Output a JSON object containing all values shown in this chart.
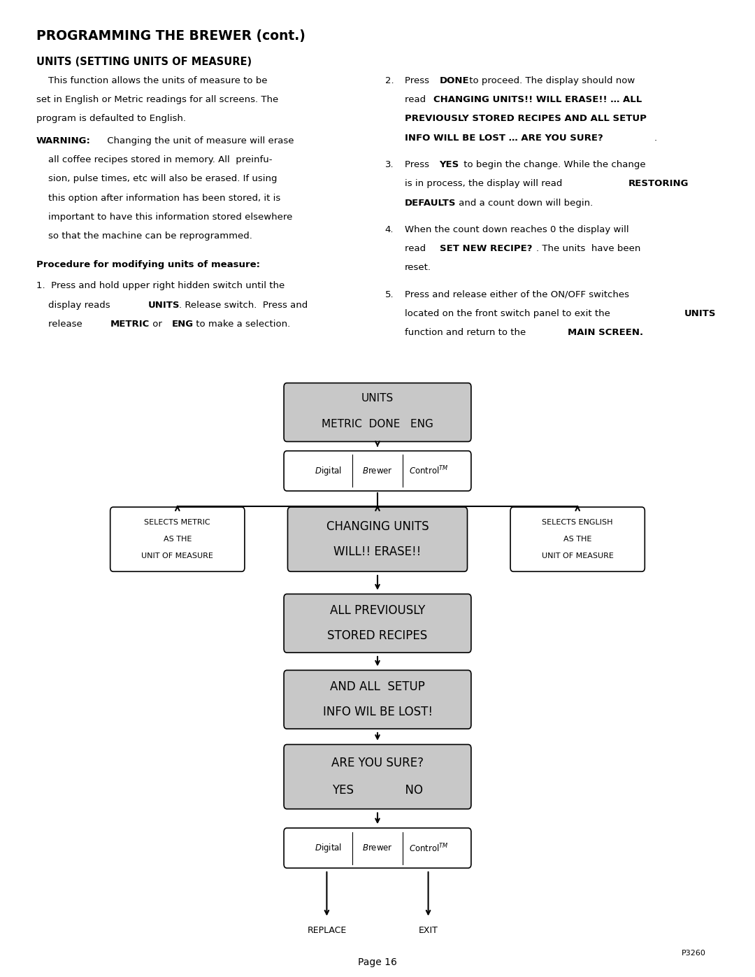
{
  "page_bg": "#ffffff",
  "title": "PROGRAMMING THE BREWER (cont.)",
  "subtitle": "UNITS (SETTING UNITS OF MEASURE)",
  "page_number": "Page 16",
  "part_number": "P3260",
  "gray_box": "#c8c8c8",
  "white_box": "#ffffff",
  "nodes": {
    "units": [
      0.5,
      0.422,
      0.24,
      0.052
    ],
    "dbc1": [
      0.5,
      0.482,
      0.24,
      0.033
    ],
    "metric": [
      0.235,
      0.552,
      0.17,
      0.058
    ],
    "changing": [
      0.5,
      0.552,
      0.23,
      0.058
    ],
    "english": [
      0.765,
      0.552,
      0.17,
      0.058
    ],
    "allprev": [
      0.5,
      0.638,
      0.24,
      0.052
    ],
    "andall": [
      0.5,
      0.716,
      0.24,
      0.052
    ],
    "areyou": [
      0.5,
      0.795,
      0.24,
      0.058
    ],
    "dbc2": [
      0.5,
      0.868,
      0.24,
      0.033
    ]
  },
  "node_bg": {
    "units": "#c8c8c8",
    "dbc1": "#ffffff",
    "metric": "#ffffff",
    "changing": "#c8c8c8",
    "english": "#ffffff",
    "allprev": "#c8c8c8",
    "andall": "#c8c8c8",
    "areyou": "#c8c8c8",
    "dbc2": "#ffffff"
  }
}
